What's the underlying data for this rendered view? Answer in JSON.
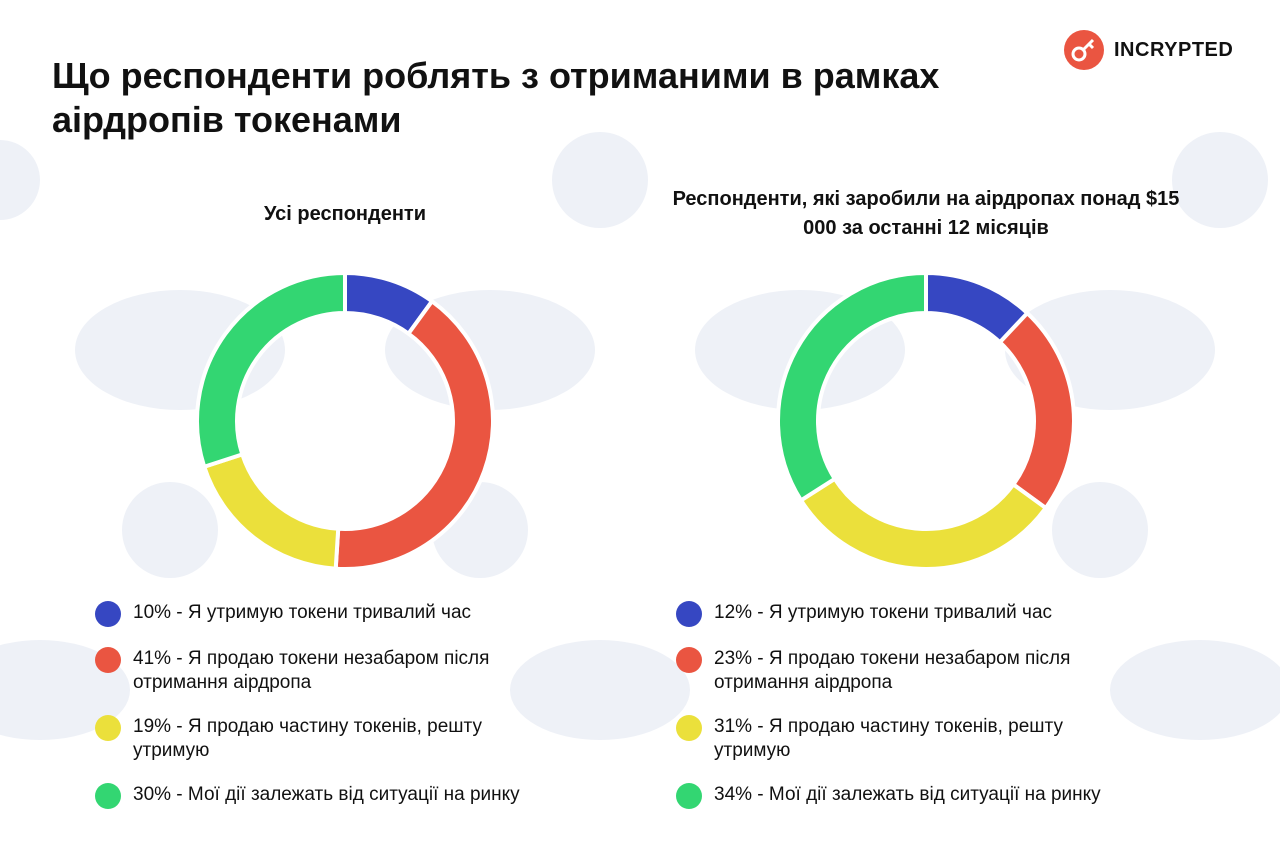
{
  "title": "Що респонденти роблять з отриманими в рамках аірдропів токенами",
  "brand": "INCRYPTED",
  "chart_data": [
    {
      "type": "donut",
      "title": "Усі респонденти",
      "categories": [
        "10% - Я утримую токени тривалий час",
        "41% - Я продаю токени незабаром після отримання аірдропа",
        "19% - Я продаю частину токенів, решту утримую",
        "30% - Мої дії залежать від ситуації на ринку"
      ],
      "values": [
        10,
        41,
        19,
        30
      ],
      "colors": [
        "#3647c2",
        "#ea5541",
        "#ebe03b",
        "#33d672"
      ]
    },
    {
      "type": "donut",
      "title": "Респонденти, які заробили на аірдропах понад $15 000 за останні 12 місяців",
      "categories": [
        "12% - Я утримую токени тривалий час",
        "23% - Я продаю токени незабаром після отримання аірдропа",
        "31% - Я продаю частину токенів, решту утримую",
        "34% - Мої дії залежать від ситуації на ринку"
      ],
      "values": [
        12,
        23,
        31,
        34
      ],
      "colors": [
        "#3647c2",
        "#ea5541",
        "#ebe03b",
        "#33d672"
      ]
    }
  ]
}
